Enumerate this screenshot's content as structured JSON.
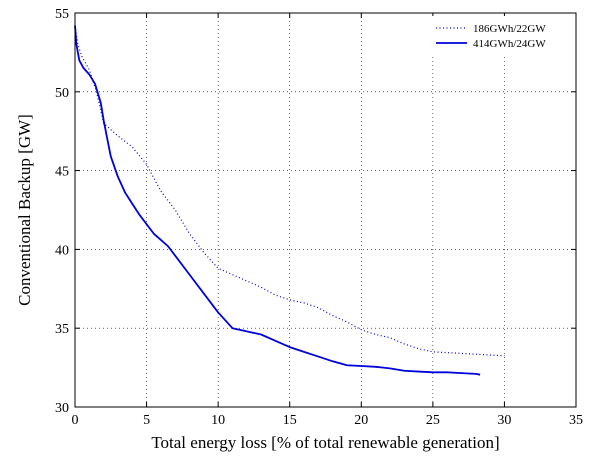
{
  "chart_data": {
    "type": "line",
    "xlabel": "Total energy loss [% of total renewable generation]",
    "ylabel": "Conventional Backup [GW]",
    "xlim": [
      0,
      35
    ],
    "ylim": [
      30,
      55
    ],
    "xticks": [
      "0",
      "5",
      "10",
      "15",
      "20",
      "25",
      "30",
      "35"
    ],
    "yticks": [
      "30",
      "35",
      "40",
      "45",
      "50",
      "55"
    ],
    "grid": true,
    "legend_position": "top-right",
    "series": [
      {
        "name": "186GWh/22GW",
        "style": "dotted",
        "color": "#0000cc",
        "points": [
          [
            0,
            54.2
          ],
          [
            0.2,
            53.0
          ],
          [
            0.5,
            52.2
          ],
          [
            1,
            51.4
          ],
          [
            1.5,
            50.0
          ],
          [
            2,
            48.0
          ],
          [
            3,
            47.2
          ],
          [
            4,
            46.5
          ],
          [
            5,
            45.4
          ],
          [
            6,
            43.7
          ],
          [
            7,
            42.5
          ],
          [
            8,
            41.0
          ],
          [
            9,
            39.8
          ],
          [
            10,
            38.8
          ],
          [
            11,
            38.4
          ],
          [
            12,
            38.0
          ],
          [
            13,
            37.6
          ],
          [
            14,
            37.1
          ],
          [
            15,
            36.8
          ],
          [
            16,
            36.6
          ],
          [
            17,
            36.3
          ],
          [
            18,
            35.8
          ],
          [
            19,
            35.4
          ],
          [
            20,
            34.9
          ],
          [
            21,
            34.6
          ],
          [
            22,
            34.4
          ],
          [
            23,
            34.0
          ],
          [
            24,
            33.7
          ],
          [
            25,
            33.5
          ],
          [
            26,
            33.45
          ],
          [
            27,
            33.4
          ],
          [
            28,
            33.35
          ],
          [
            29,
            33.3
          ],
          [
            30,
            33.25
          ]
        ]
      },
      {
        "name": "414GWh/24GW",
        "style": "solid",
        "color": "#0000dd",
        "points": [
          [
            0,
            54.2
          ],
          [
            0.1,
            53.0
          ],
          [
            0.3,
            52.0
          ],
          [
            0.6,
            51.5
          ],
          [
            1,
            51.1
          ],
          [
            1.4,
            50.5
          ],
          [
            1.8,
            49.3
          ],
          [
            2,
            48.2
          ],
          [
            2.3,
            46.8
          ],
          [
            2.5,
            45.9
          ],
          [
            3,
            44.6
          ],
          [
            3.5,
            43.6
          ],
          [
            4,
            42.9
          ],
          [
            4.5,
            42.2
          ],
          [
            5,
            41.6
          ],
          [
            5.5,
            41.0
          ],
          [
            6,
            40.6
          ],
          [
            6.5,
            40.2
          ],
          [
            7,
            39.6
          ],
          [
            8,
            38.4
          ],
          [
            9,
            37.2
          ],
          [
            10,
            36.0
          ],
          [
            11,
            35.0
          ],
          [
            12,
            34.8
          ],
          [
            13,
            34.6
          ],
          [
            14,
            34.2
          ],
          [
            15,
            33.8
          ],
          [
            16,
            33.5
          ],
          [
            17,
            33.2
          ],
          [
            18,
            32.9
          ],
          [
            19,
            32.65
          ],
          [
            20,
            32.6
          ],
          [
            21,
            32.55
          ],
          [
            22,
            32.45
          ],
          [
            23,
            32.3
          ],
          [
            24,
            32.25
          ],
          [
            25,
            32.2
          ],
          [
            26,
            32.2
          ],
          [
            27,
            32.15
          ],
          [
            28,
            32.1
          ],
          [
            28.3,
            32.05
          ]
        ]
      }
    ]
  }
}
